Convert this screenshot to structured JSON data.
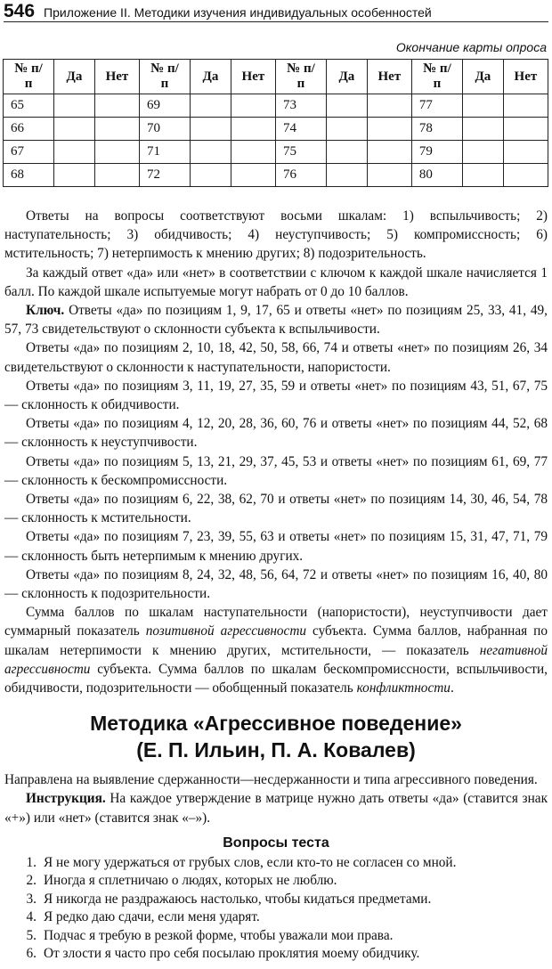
{
  "header": {
    "page_number": "546",
    "title": "Приложение II. Методики изучения индивидуальных особенностей"
  },
  "table_caption": "Окончание карты опроса",
  "table": {
    "headers": [
      "№ п/п",
      "Да",
      "Нет",
      "№ п/п",
      "Да",
      "Нет",
      "№ п/п",
      "Да",
      "Нет",
      "№ п/п",
      "Да",
      "Нет"
    ],
    "rows": [
      [
        "65",
        "",
        "",
        "69",
        "",
        "",
        "73",
        "",
        "",
        "77",
        "",
        ""
      ],
      [
        "66",
        "",
        "",
        "70",
        "",
        "",
        "74",
        "",
        "",
        "78",
        "",
        ""
      ],
      [
        "67",
        "",
        "",
        "71",
        "",
        "",
        "75",
        "",
        "",
        "79",
        "",
        ""
      ],
      [
        "68",
        "",
        "",
        "72",
        "",
        "",
        "76",
        "",
        "",
        "80",
        "",
        ""
      ]
    ]
  },
  "paragraphs": [
    {
      "text": "Ответы на вопросы соответствуют восьми шкалам: 1) вспыльчивость; 2) наступательность; 3) обидчивость; 4) неуступчивость; 5) компромиссность; 6) мстительность; 7) нетерпимость к мнению других; 8) подозрительность."
    },
    {
      "text": "За каждый ответ «да» или «нет» в соответствии с ключом к каждой шкале начисляется 1 балл. По каждой шкале испытуемые могут набрать от 0 до 10 баллов."
    },
    {
      "bold": "Ключ.",
      "text": " Ответы «да» по позициям 1, 9, 17, 65 и ответы «нет» по позициям 25, 33, 41, 49, 57, 73 свидетельствуют о склонности субъекта к вспыльчивости."
    },
    {
      "text": "Ответы «да» по позициям 2, 10, 18, 42, 50, 58, 66, 74 и ответы «нет» по позициям 26, 34 свидетельствуют о склонности к наступательности, напористости."
    },
    {
      "text": "Ответы «да» по позициям 3, 11, 19, 27, 35, 59 и ответы «нет» по позициям 43, 51, 67, 75 — склонность к обидчивости."
    },
    {
      "text": "Ответы «да» по позициям 4, 12, 20, 28, 36, 60, 76 и ответы «нет» по позициям 44, 52, 68 — склонность к неуступчивости."
    },
    {
      "text": "Ответы «да» по позициям 5, 13, 21, 29, 37, 45, 53 и ответы «нет» по позициям 61, 69, 77 — склонность к бескомпромиссности."
    },
    {
      "text": "Ответы «да» по позициям 6, 22, 38, 62, 70 и ответы «нет» по позициям 14, 30, 46, 54, 78 — склонность к мстительности."
    },
    {
      "text": "Ответы «да» по позициям 7, 23, 39, 55, 63 и ответы «нет» по позициям 15, 31, 47, 71, 79 — склонность быть нетерпимым к мнению других."
    },
    {
      "text": "Ответы «да» по позициям 8, 24, 32, 48, 56, 64, 72 и ответы «нет» по позициям 16, 40, 80 — склонность к подозрительности."
    }
  ],
  "summary": {
    "s1": "Сумма баллов по шкалам наступательности (напористости), неуступчивости дает суммарный показатель ",
    "i1": "позитивной агрессивности",
    "s2": " субъекта. Сумма баллов, набранная по шкалам нетерпимости к мнению других, мстительности, — показатель ",
    "i2": "негативной агрессивности",
    "s3": " субъекта. Сумма баллов по шкалам бескомпромиссности, вспыльчивости, обидчивости, подозрительности — обобщенный показатель ",
    "i3": "конфликтности",
    "s4": "."
  },
  "method": {
    "title_line1": "Методика «Агрессивное поведение»",
    "title_line2": "(Е. П. Ильин, П. А. Ковалев)",
    "purpose": "Направлена на выявление сдержанности—несдержанности и типа агрессивного поведения.",
    "instruction_label": "Инструкция.",
    "instruction": " На каждое утверждение в матрице нужно дать ответы «да» (ставится знак «+») или «нет» (ставится знак «–»).",
    "questions_title": "Вопросы теста",
    "questions": [
      {
        "n": "1.",
        "text": "Я не могу удержаться от грубых слов, если кто-то не согласен со мной."
      },
      {
        "n": "2.",
        "text": "Иногда я сплетничаю о людях, которых не люблю."
      },
      {
        "n": "3.",
        "text": "Я никогда не раздражаюсь настолько, чтобы кидаться предметами."
      },
      {
        "n": "4.",
        "text": "Я редко даю сдачи, если меня ударят."
      },
      {
        "n": "5.",
        "text": "Подчас я требую в резкой форме, чтобы уважали мои права."
      },
      {
        "n": "6.",
        "text": "От злости я часто про себя посылаю проклятия моему обидчику."
      }
    ]
  }
}
